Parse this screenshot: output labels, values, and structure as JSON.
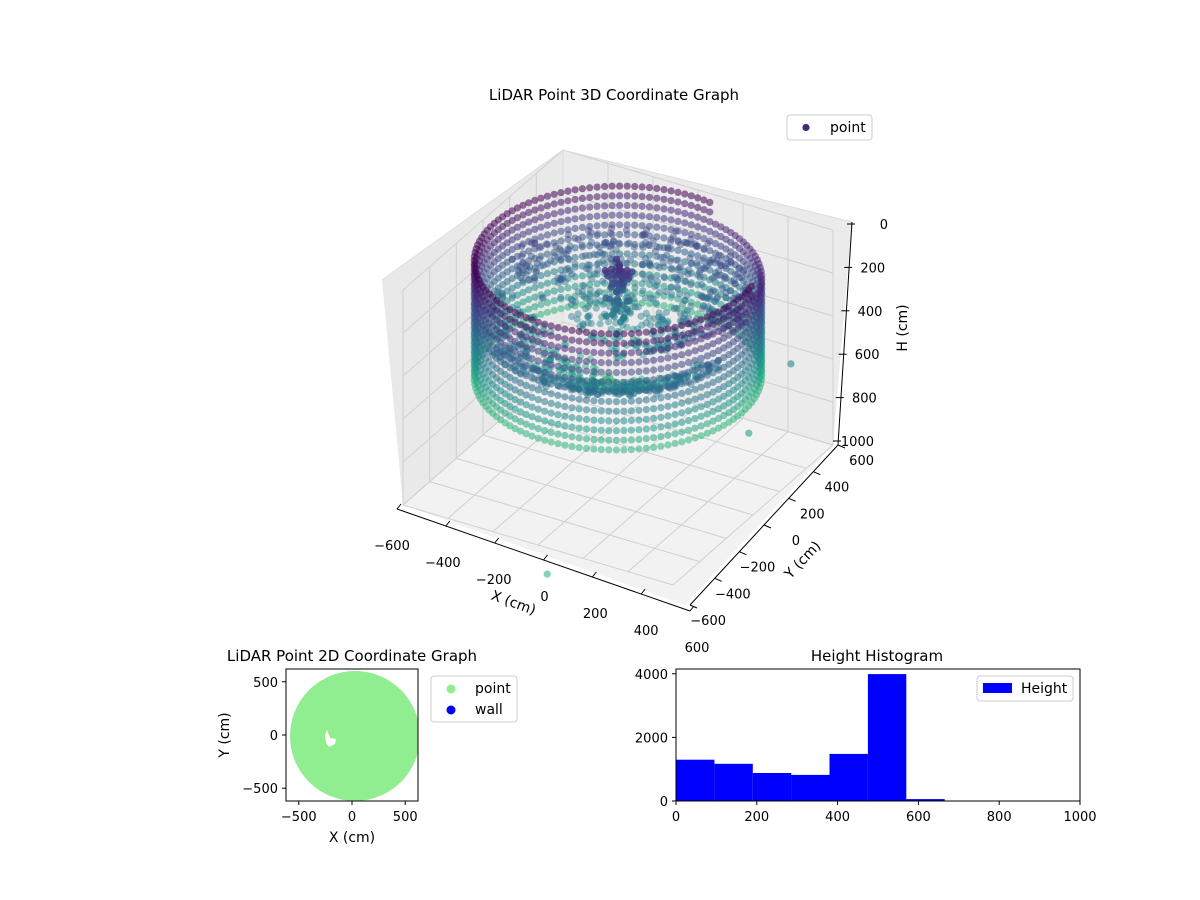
{
  "chart_data": [
    {
      "type": "scatter",
      "subtype": "3d",
      "title": "LiDAR Point 3D Coordinate Graph",
      "xlabel": "X (cm)",
      "ylabel": "Y (cm)",
      "zlabel": "H (cm)",
      "xticks": [
        -600,
        -400,
        -200,
        0,
        200,
        400,
        600
      ],
      "yticks": [
        -600,
        -400,
        -200,
        0,
        200,
        400,
        600
      ],
      "zticks": [
        0,
        200,
        400,
        600,
        800,
        1000
      ],
      "xlim": [
        -600,
        600
      ],
      "ylim": [
        -600,
        600
      ],
      "zlim": [
        1000,
        0
      ],
      "zaxis_inverted": true,
      "grid": true,
      "colormap": "viridis (by height)",
      "legend": {
        "position": "top-right",
        "entries": [
          {
            "label": "point",
            "color": "#482878"
          }
        ]
      },
      "shape": "cylindrical wall of points, radius about 550 cm, height 0 to 550 cm, with sloped inner floor surface and a central point cluster"
    },
    {
      "type": "scatter",
      "title": "LiDAR Point 2D Coordinate Graph",
      "xlabel": "X (cm)",
      "ylabel": "Y (cm)",
      "xticks": [
        -500,
        0,
        500
      ],
      "yticks": [
        500,
        0,
        -500
      ],
      "xlim": [
        -620,
        620
      ],
      "ylim": [
        -620,
        620
      ],
      "legend": {
        "position": "outside-right",
        "entries": [
          {
            "label": "point",
            "color": "#90ee90"
          },
          {
            "label": "wall",
            "color": "#0000ff"
          }
        ]
      },
      "shape": "filled disc of points of radius about 600 cm with a small gap near (-200, -60)"
    },
    {
      "type": "bar",
      "subtype": "histogram",
      "title": "Height Histogram",
      "xticks": [
        0,
        200,
        400,
        600,
        800,
        1000
      ],
      "yticks": [
        0,
        2000,
        4000
      ],
      "xlim": [
        0,
        1000
      ],
      "ylim": [
        0,
        4150
      ],
      "color": "#0000ff",
      "legend": {
        "position": "top-right",
        "entries": [
          {
            "label": "Height",
            "color": "#0000ff"
          }
        ]
      },
      "bins": [
        {
          "start": 0,
          "end": 95,
          "count": 1300
        },
        {
          "start": 95,
          "end": 190,
          "count": 1170
        },
        {
          "start": 190,
          "end": 285,
          "count": 880
        },
        {
          "start": 285,
          "end": 380,
          "count": 820
        },
        {
          "start": 380,
          "end": 475,
          "count": 1480
        },
        {
          "start": 475,
          "end": 570,
          "count": 3990
        },
        {
          "start": 570,
          "end": 665,
          "count": 60
        }
      ]
    }
  ]
}
